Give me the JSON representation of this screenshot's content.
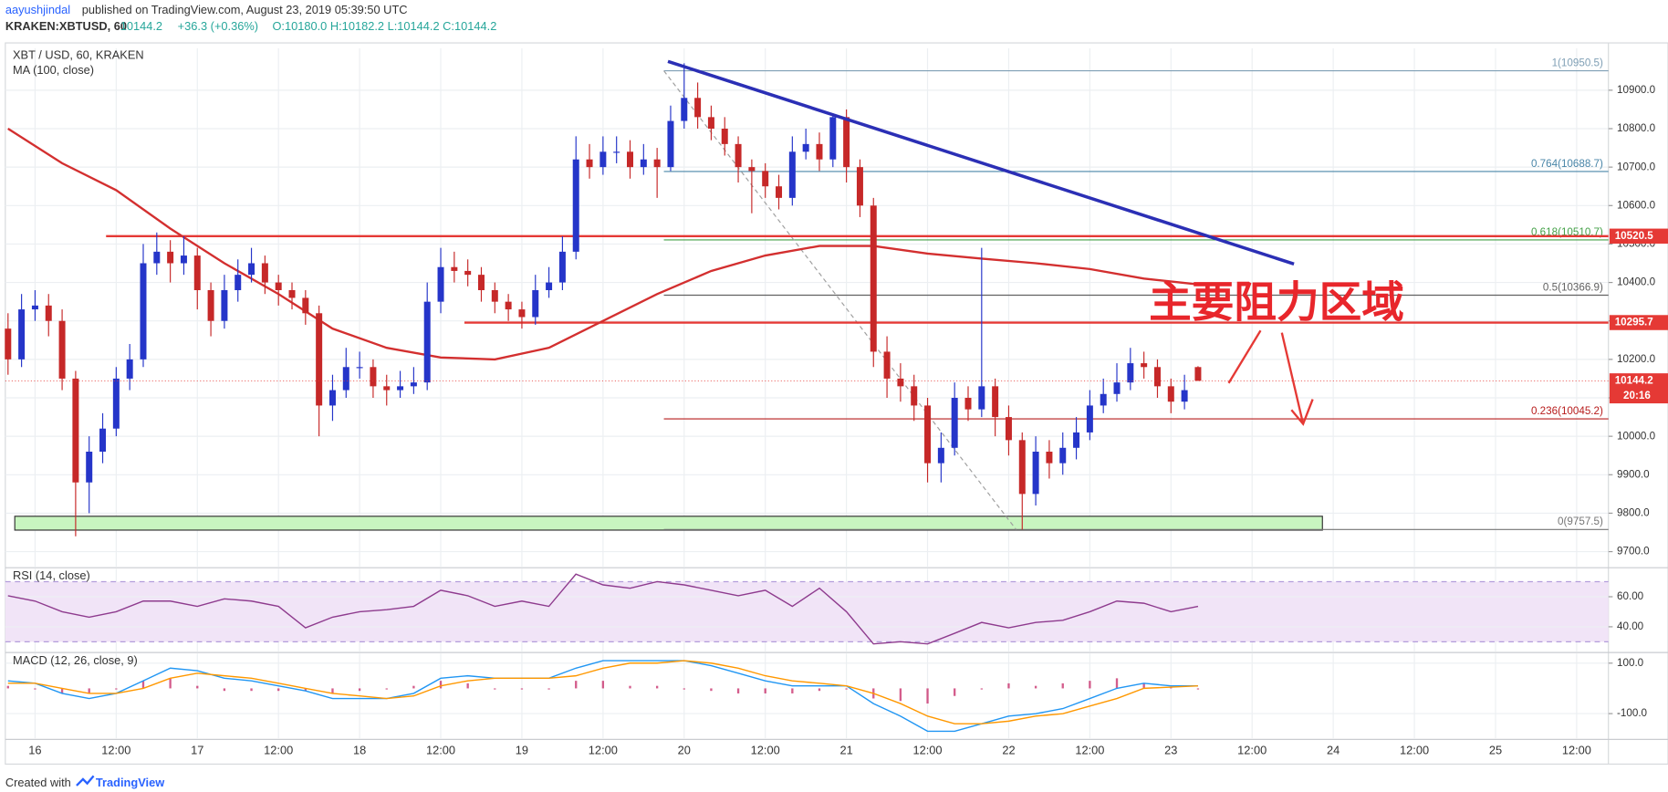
{
  "header": {
    "author": "aayushjindal",
    "published": "published on TradingView.com, August 23, 2019 05:39:50 UTC",
    "symbol": "KRAKEN:XBTUSD, 60",
    "last": "10144.2",
    "change": "+36.3 (+0.36%)",
    "ohlc": "O:10180.0 H:10182.2 L:10144.2 C:10144.2"
  },
  "annotation": "主要阻力区域",
  "footer": {
    "created": "Created with",
    "brand": "TradingView"
  },
  "chart_data": [
    {
      "type": "candlestick",
      "title": "XBT / USD, 60, KRAKEN",
      "x": [
        -4,
        -2,
        0,
        2,
        4,
        6,
        8,
        10,
        12,
        14,
        16,
        18,
        20,
        22,
        24,
        26,
        28,
        30,
        32,
        34,
        36,
        38,
        40,
        42,
        44,
        46,
        48,
        50,
        52,
        54,
        56,
        58,
        60,
        62,
        64,
        66,
        68,
        70,
        72,
        74,
        76,
        78,
        80,
        82,
        84,
        86,
        88,
        90,
        92,
        94,
        96,
        98,
        100,
        102,
        104,
        106,
        108,
        110,
        112,
        114,
        116,
        118,
        120,
        122,
        124,
        126,
        128,
        130,
        132,
        134,
        136,
        138,
        140,
        142,
        144,
        146,
        148,
        150,
        152,
        154,
        156,
        158,
        160,
        162,
        164,
        166,
        168,
        170,
        172
      ],
      "open": [
        10280,
        10200,
        10330,
        10340,
        10300,
        10150,
        9880,
        9960,
        10020,
        10150,
        10200,
        10450,
        10480,
        10450,
        10470,
        10380,
        10300,
        10380,
        10420,
        10450,
        10400,
        10380,
        10360,
        10320,
        10080,
        10120,
        10180,
        10180,
        10130,
        10120,
        10130,
        10140,
        10350,
        10440,
        10430,
        10420,
        10380,
        10350,
        10330,
        10310,
        10380,
        10400,
        10480,
        10720,
        10700,
        10740,
        10740,
        10700,
        10720,
        10700,
        10820,
        10880,
        10830,
        10800,
        10760,
        10700,
        10690,
        10650,
        10620,
        10740,
        10760,
        10720,
        10830,
        10700,
        10600,
        10220,
        10150,
        10130,
        10080,
        9930,
        9970,
        10100,
        10070,
        10130,
        10050,
        9990,
        9850,
        9960,
        9930,
        9970,
        10010,
        10080,
        10110,
        10140,
        10190,
        10180,
        10130,
        10090,
        10180
      ],
      "high": [
        10320,
        10370,
        10380,
        10370,
        10330,
        10170,
        10000,
        10060,
        10180,
        10240,
        10500,
        10530,
        10510,
        10520,
        10490,
        10400,
        10420,
        10460,
        10490,
        10470,
        10420,
        10400,
        10380,
        10340,
        10160,
        10230,
        10220,
        10200,
        10160,
        10170,
        10180,
        10400,
        10490,
        10480,
        10460,
        10440,
        10400,
        10370,
        10350,
        10420,
        10440,
        10520,
        10780,
        10760,
        10780,
        10780,
        10770,
        10760,
        10750,
        10860,
        10970,
        10920,
        10860,
        10830,
        10780,
        10720,
        10710,
        10680,
        10780,
        10800,
        10790,
        10840,
        10850,
        10720,
        10620,
        10260,
        10190,
        10160,
        10100,
        10010,
        10140,
        10130,
        10490,
        10150,
        10080,
        10010,
        10000,
        9990,
        10010,
        10050,
        10120,
        10150,
        10190,
        10230,
        10220,
        10200,
        10150,
        10160,
        10182.2
      ],
      "low": [
        10160,
        10180,
        10300,
        10260,
        10120,
        9740,
        9800,
        9930,
        10000,
        10120,
        10180,
        10420,
        10400,
        10420,
        10330,
        10260,
        10280,
        10350,
        10400,
        10370,
        10340,
        10330,
        10290,
        10000,
        10040,
        10100,
        10150,
        10100,
        10080,
        10100,
        10110,
        10120,
        10320,
        10400,
        10390,
        10350,
        10320,
        10300,
        10280,
        10290,
        10360,
        10380,
        10460,
        10670,
        10680,
        10710,
        10670,
        10680,
        10620,
        10690,
        10800,
        10800,
        10770,
        10730,
        10660,
        10580,
        10620,
        10590,
        10600,
        10720,
        10690,
        10700,
        10660,
        10570,
        10180,
        10100,
        10090,
        10040,
        9880,
        9880,
        9950,
        10040,
        10050,
        10000,
        9950,
        9757.5,
        9820,
        9890,
        9900,
        9940,
        9990,
        10060,
        10090,
        10120,
        10150,
        10100,
        10060,
        10070,
        10144.2
      ],
      "close": [
        10200,
        10330,
        10340,
        10300,
        10150,
        9880,
        9960,
        10020,
        10150,
        10200,
        10450,
        10480,
        10450,
        10470,
        10380,
        10300,
        10380,
        10420,
        10450,
        10400,
        10380,
        10360,
        10320,
        10080,
        10120,
        10180,
        10180,
        10130,
        10120,
        10130,
        10140,
        10350,
        10440,
        10430,
        10420,
        10380,
        10350,
        10330,
        10310,
        10380,
        10400,
        10480,
        10720,
        10700,
        10740,
        10740,
        10700,
        10720,
        10700,
        10820,
        10880,
        10830,
        10800,
        10760,
        10700,
        10690,
        10650,
        10620,
        10740,
        10760,
        10720,
        10830,
        10700,
        10600,
        10220,
        10150,
        10130,
        10080,
        9930,
        9970,
        10100,
        10070,
        10130,
        10050,
        9990,
        9850,
        9960,
        9930,
        9970,
        10010,
        10080,
        10110,
        10140,
        10190,
        10180,
        10130,
        10090,
        10120,
        10144.2
      ],
      "up_color": "#2535c9",
      "down_color": "#c62828",
      "xlim": [
        -4.4,
        232.7
      ],
      "xticks": [
        {
          "value": 0,
          "label": "16"
        },
        {
          "value": 12,
          "label": "12:00"
        },
        {
          "value": 24,
          "label": "17"
        },
        {
          "value": 36,
          "label": "12:00"
        },
        {
          "value": 48,
          "label": "18"
        },
        {
          "value": 60,
          "label": "12:00"
        },
        {
          "value": 72,
          "label": "19"
        },
        {
          "value": 84,
          "label": "12:00"
        },
        {
          "value": 96,
          "label": "20"
        },
        {
          "value": 108,
          "label": "12:00"
        },
        {
          "value": 120,
          "label": "21"
        },
        {
          "value": 132,
          "label": "12:00"
        },
        {
          "value": 144,
          "label": "22"
        },
        {
          "value": 156,
          "label": "12:00"
        },
        {
          "value": 168,
          "label": "23"
        },
        {
          "value": 180,
          "label": "12:00"
        },
        {
          "value": 192,
          "label": "24"
        },
        {
          "value": 204,
          "label": "12:00"
        },
        {
          "value": 216,
          "label": "25"
        },
        {
          "value": 228,
          "label": "12:00"
        }
      ],
      "ylim": [
        9661,
        11009
      ],
      "yticks": [
        {
          "value": 9700,
          "label": "9700.0"
        },
        {
          "value": 9800,
          "label": "9800.0"
        },
        {
          "value": 9900,
          "label": "9900.0"
        },
        {
          "value": 10000,
          "label": "10000.0"
        },
        {
          "value": 10100,
          "label": "10100.0"
        },
        {
          "value": 10200,
          "label": "10200.0"
        },
        {
          "value": 10300,
          "label": "10300.0"
        },
        {
          "value": 10400,
          "label": "10400.0"
        },
        {
          "value": 10500,
          "label": "10500.0"
        },
        {
          "value": 10600,
          "label": "10600.0"
        },
        {
          "value": 10700,
          "label": "10700.0"
        },
        {
          "value": 10800,
          "label": "10800.0"
        },
        {
          "value": 10900,
          "label": "10900.0"
        }
      ],
      "grid": true,
      "ma": {
        "name": "MA (100, close)",
        "color": "#d32f2f",
        "x": [
          -4,
          4,
          12,
          20,
          28,
          36,
          44,
          52,
          60,
          68,
          76,
          84,
          92,
          100,
          108,
          116,
          124,
          132,
          140,
          148,
          156,
          164,
          172
        ],
        "values": [
          10800,
          10710,
          10640,
          10540,
          10450,
          10370,
          10280,
          10230,
          10205,
          10200,
          10230,
          10300,
          10370,
          10430,
          10470,
          10495,
          10495,
          10475,
          10462,
          10450,
          10435,
          10410,
          10395
        ]
      },
      "levels": [
        {
          "value": 10520.5,
          "label": "10520.5",
          "color": "#e53935",
          "x_start": 10.5
        },
        {
          "value": 10295.7,
          "label": "10295.7",
          "color": "#e53935",
          "x_start": 63.5
        }
      ],
      "fib": {
        "x_start": 93,
        "levels": [
          {
            "value": 10950.5,
            "label": "1(10950.5)",
            "color": "#7f9fb5"
          },
          {
            "value": 10688.7,
            "label": "0.764(10688.7)",
            "color": "#4a86a8"
          },
          {
            "value": 10510.7,
            "label": "0.618(10510.7)",
            "color": "#43a047"
          },
          {
            "value": 10366.9,
            "label": "0.5(10366.9)",
            "color": "#616161"
          },
          {
            "value": 10045.2,
            "label": "0.236(10045.2)",
            "color": "#b71c1c"
          },
          {
            "value": 9757.5,
            "label": "0(9757.5)",
            "color": "#757575"
          }
        ]
      },
      "fib_diagonal": {
        "x": [
          93,
          145.1
        ],
        "values": [
          10950.5,
          9757.5
        ],
        "color": "#9e9e9e"
      },
      "trendline": {
        "x": [
          93.6,
          186.2
        ],
        "values": [
          10975,
          10448
        ],
        "color": "#2b2fb5"
      },
      "support_zone": {
        "x": [
          -3,
          190.4
        ],
        "values": [
          9756,
          9792
        ],
        "color": "#c8f5c0"
      },
      "last_price": {
        "value": 10144.2,
        "label": "10144.2",
        "countdown": "20:16",
        "color": "#e53935"
      }
    },
    {
      "type": "line",
      "title": "RSI (14, close)",
      "x": [
        -4,
        0,
        4,
        8,
        12,
        16,
        20,
        24,
        28,
        32,
        36,
        40,
        44,
        48,
        52,
        56,
        60,
        64,
        68,
        72,
        76,
        80,
        84,
        88,
        92,
        96,
        100,
        104,
        108,
        112,
        116,
        120,
        124,
        128,
        132,
        136,
        140,
        144,
        148,
        152,
        156,
        160,
        164,
        168,
        172
      ],
      "series": [
        {
          "color": "#8e3b8e",
          "values": [
            60.7,
            57.1,
            50,
            46.4,
            50,
            57.1,
            57.1,
            53.6,
            58.6,
            57.1,
            53.6,
            39.3,
            46.4,
            50,
            51.4,
            53.6,
            64.3,
            60.7,
            53.6,
            57.1,
            53.6,
            75,
            67.9,
            65.7,
            70,
            67.9,
            64.3,
            60.7,
            64.3,
            53.6,
            65.7,
            50,
            28.6,
            30,
            28.6,
            35.7,
            42.9,
            39.3,
            42.9,
            44.3,
            50,
            57.1,
            55.7,
            50,
            53.6
          ]
        }
      ],
      "band": [
        30,
        70
      ],
      "band_color": "#f1e4f7",
      "ylim": [
        23.6,
        78.6
      ],
      "yticks": [
        {
          "value": 40,
          "label": "40.00"
        },
        {
          "value": 60,
          "label": "60.00"
        }
      ]
    },
    {
      "type": "line",
      "title": "MACD (12, 26, close, 9)",
      "x": [
        -4,
        0,
        4,
        8,
        12,
        16,
        20,
        24,
        28,
        32,
        36,
        40,
        44,
        48,
        52,
        56,
        60,
        64,
        68,
        72,
        76,
        80,
        84,
        88,
        92,
        96,
        100,
        104,
        108,
        112,
        116,
        120,
        124,
        128,
        132,
        136,
        140,
        144,
        148,
        152,
        156,
        160,
        164,
        168,
        172
      ],
      "series": [
        {
          "style": "histogram",
          "color": "#c2185b",
          "values": [
            10,
            0,
            -20,
            -20,
            0,
            30,
            40,
            10,
            -10,
            -10,
            -10,
            -10,
            -20,
            -10,
            0,
            10,
            30,
            20,
            0,
            0,
            0,
            30,
            30,
            10,
            10,
            0,
            -10,
            -20,
            -20,
            -20,
            -10,
            0,
            -40,
            -50,
            -60,
            -30,
            0,
            20,
            10,
            20,
            30,
            40,
            20,
            5,
            0
          ]
        },
        {
          "style": "line",
          "color": "#2196f3",
          "values": [
            30,
            20,
            -20,
            -40,
            -20,
            30,
            80,
            70,
            40,
            30,
            10,
            -10,
            -40,
            -40,
            -40,
            -20,
            40,
            50,
            40,
            40,
            40,
            80,
            110,
            110,
            110,
            110,
            90,
            60,
            30,
            10,
            10,
            10,
            -60,
            -110,
            -170,
            -170,
            -140,
            -110,
            -100,
            -80,
            -40,
            0,
            20,
            10,
            10
          ]
        },
        {
          "style": "line",
          "color": "#ff9800",
          "values": [
            20,
            20,
            0,
            -20,
            -20,
            0,
            40,
            60,
            50,
            40,
            20,
            0,
            -20,
            -30,
            -40,
            -30,
            10,
            30,
            40,
            40,
            40,
            50,
            80,
            100,
            100,
            110,
            100,
            80,
            50,
            30,
            20,
            10,
            -20,
            -60,
            -110,
            -140,
            -140,
            -130,
            -110,
            -100,
            -70,
            -40,
            0,
            5,
            10
          ]
        }
      ],
      "ylim": [
        -198,
        138
      ],
      "yticks": [
        {
          "value": -100,
          "label": "-100.0"
        },
        {
          "value": 100,
          "label": "100.0"
        }
      ]
    }
  ]
}
